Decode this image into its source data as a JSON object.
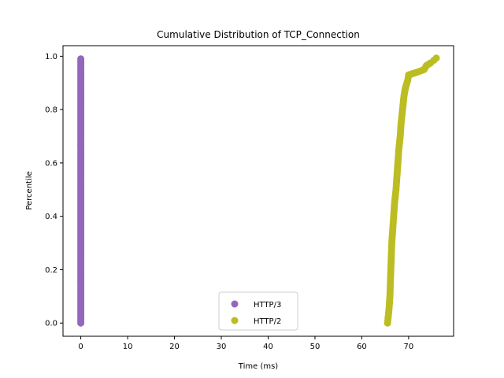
{
  "chart_data": {
    "type": "scatter",
    "title": "Cumulative Distribution of TCP_Connection",
    "xlabel": "Time (ms)",
    "ylabel": "Percentile",
    "xlim": [
      -3.8,
      79.6
    ],
    "ylim": [
      -0.0495,
      1.0395
    ],
    "xticks": [
      0,
      10,
      20,
      30,
      40,
      50,
      60,
      70
    ],
    "xtick_labels": [
      "0",
      "10",
      "20",
      "30",
      "40",
      "50",
      "60",
      "70"
    ],
    "yticks": [
      0.0,
      0.2,
      0.4,
      0.6,
      0.8,
      1.0
    ],
    "ytick_labels": [
      "0.0",
      "0.2",
      "0.4",
      "0.6",
      "0.8",
      "1.0"
    ],
    "grid": false,
    "legend_position": "lower-center",
    "series": [
      {
        "name": "HTTP/3",
        "color": "#9467bd",
        "points": [
          [
            0.0,
            0.0
          ],
          [
            0.0,
            0.1
          ],
          [
            0.0,
            0.2
          ],
          [
            0.0,
            0.3
          ],
          [
            0.0,
            0.4
          ],
          [
            0.0,
            0.5
          ],
          [
            0.0,
            0.6
          ],
          [
            0.0,
            0.7
          ],
          [
            0.0,
            0.8
          ],
          [
            0.0,
            0.9
          ],
          [
            0.0,
            0.99
          ]
        ]
      },
      {
        "name": "HTTP/2",
        "color": "#bcbd22",
        "points": [
          [
            65.5,
            0.0
          ],
          [
            65.8,
            0.05
          ],
          [
            66.0,
            0.1
          ],
          [
            66.1,
            0.15
          ],
          [
            66.2,
            0.2
          ],
          [
            66.3,
            0.25
          ],
          [
            66.4,
            0.3
          ],
          [
            66.6,
            0.35
          ],
          [
            66.8,
            0.4
          ],
          [
            67.0,
            0.45
          ],
          [
            67.3,
            0.5
          ],
          [
            67.5,
            0.55
          ],
          [
            67.7,
            0.6
          ],
          [
            67.9,
            0.65
          ],
          [
            68.2,
            0.7
          ],
          [
            68.4,
            0.75
          ],
          [
            68.7,
            0.8
          ],
          [
            69.0,
            0.85
          ],
          [
            69.3,
            0.88
          ],
          [
            69.8,
            0.91
          ],
          [
            70.0,
            0.93
          ],
          [
            71.8,
            0.94
          ],
          [
            73.3,
            0.95
          ],
          [
            73.8,
            0.965
          ],
          [
            74.7,
            0.975
          ],
          [
            75.4,
            0.985
          ],
          [
            75.9,
            0.993
          ]
        ]
      }
    ]
  }
}
